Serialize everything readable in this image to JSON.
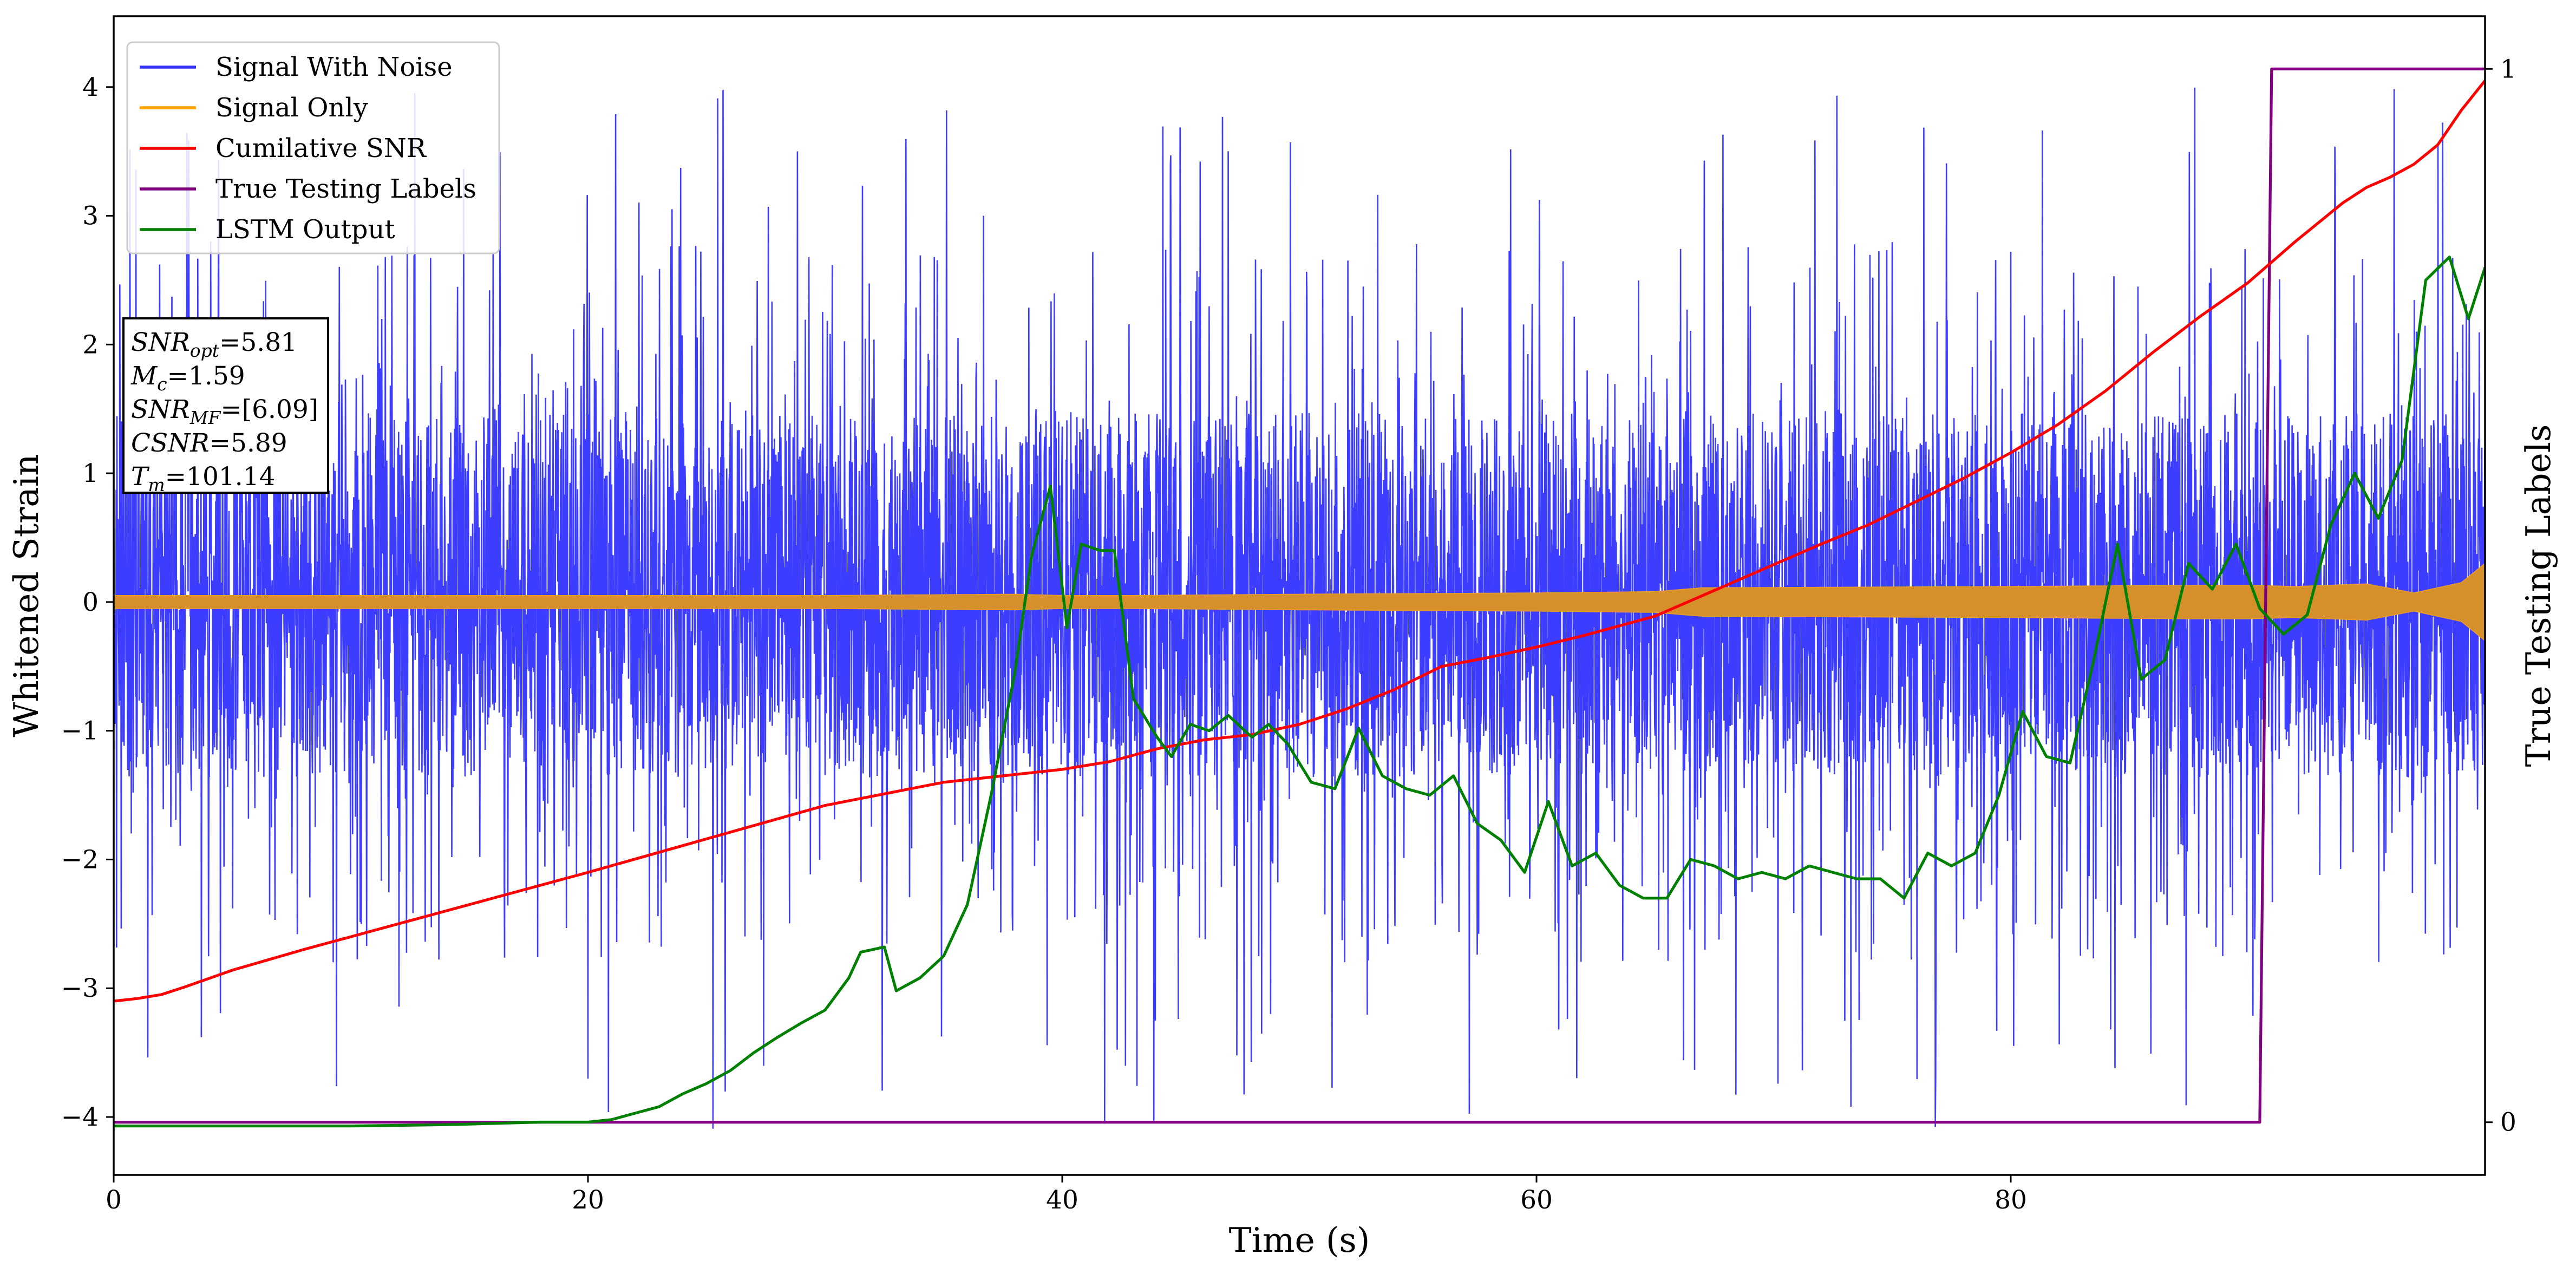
{
  "chart_data": {
    "type": "line",
    "xlabel": "Time (s)",
    "ylabel": "Whitened Strain",
    "y2label": "True Testing Labels",
    "xlim": [
      0,
      100
    ],
    "ylim": [
      -4.45,
      4.55
    ],
    "y2lim": [
      -0.05,
      1.05
    ],
    "xticks": [
      0,
      20,
      40,
      60,
      80
    ],
    "yticks": [
      -4,
      -3,
      -2,
      -1,
      0,
      1,
      2,
      3,
      4
    ],
    "y2ticks": [
      0,
      1
    ],
    "grid": false,
    "legend_position": "top-left",
    "legend": [
      "Signal With Noise",
      "Signal Only",
      "Cumilative SNR",
      "True Testing Labels",
      "LSTM Output"
    ],
    "annotation_lines": [
      {
        "base": "SNR",
        "sub": "opt",
        "rest": "=5.81"
      },
      {
        "base": "M",
        "sub": "c",
        "rest": "=1.59"
      },
      {
        "base": "SNR",
        "sub": "MF",
        "rest": "=[6.09]"
      },
      {
        "base": "CSNR",
        "sub": "",
        "rest": "=5.89"
      },
      {
        "base": "T",
        "sub": "m",
        "rest": "=101.14"
      }
    ],
    "series": [
      {
        "name": "Signal With Noise",
        "axis": "left",
        "color": "#3333ff",
        "kind": "noise",
        "typical_range": [
          -1.3,
          1.4
        ],
        "extreme_range": [
          -4.1,
          4.0
        ]
      },
      {
        "name": "Signal Only",
        "axis": "left",
        "color": "#ffa500",
        "kind": "envelope",
        "x": [
          0,
          10,
          20,
          30,
          38,
          40,
          43,
          50,
          60,
          65,
          67,
          80,
          88,
          90,
          92,
          95,
          97,
          99,
          100
        ],
        "amplitude": [
          0.05,
          0.05,
          0.05,
          0.05,
          0.06,
          0.05,
          0.05,
          0.06,
          0.07,
          0.08,
          0.11,
          0.12,
          0.13,
          0.13,
          0.12,
          0.14,
          0.07,
          0.15,
          0.3
        ]
      },
      {
        "name": "Cumilative SNR",
        "axis": "left",
        "color": "#ff0000",
        "x": [
          0,
          1,
          2,
          3,
          5,
          8,
          12,
          16,
          20,
          25,
          30,
          35,
          38,
          40,
          42,
          44,
          46,
          48,
          50,
          52,
          54,
          56,
          58,
          60,
          62,
          64,
          65,
          66,
          68,
          70,
          72,
          74,
          76,
          78,
          80,
          82,
          84,
          86,
          88,
          90,
          92,
          94,
          95,
          96,
          97,
          98,
          99,
          100
        ],
        "values": [
          -3.1,
          -3.08,
          -3.05,
          -2.99,
          -2.86,
          -2.7,
          -2.5,
          -2.3,
          -2.1,
          -1.84,
          -1.58,
          -1.4,
          -1.34,
          -1.3,
          -1.24,
          -1.14,
          -1.07,
          -1.03,
          -0.95,
          -0.83,
          -0.68,
          -0.5,
          -0.43,
          -0.35,
          -0.26,
          -0.16,
          -0.11,
          -0.03,
          0.13,
          0.29,
          0.45,
          0.6,
          0.78,
          0.96,
          1.16,
          1.38,
          1.64,
          1.94,
          2.22,
          2.48,
          2.8,
          3.1,
          3.22,
          3.3,
          3.4,
          3.55,
          3.82,
          4.05
        ]
      },
      {
        "name": "True Testing Labels",
        "axis": "right",
        "color": "#800080",
        "x": [
          0,
          90.5,
          91.0,
          100
        ],
        "values": [
          0,
          0,
          1,
          1
        ]
      },
      {
        "name": "LSTM Output",
        "axis": "left",
        "color": "#008000",
        "x": [
          0,
          10,
          14,
          16,
          18,
          20,
          21,
          22,
          23,
          24,
          25,
          26,
          27,
          28,
          29,
          30,
          31,
          31.5,
          32.5,
          33,
          34,
          35,
          36,
          37,
          38,
          38.7,
          39.5,
          40.2,
          40.8,
          41.6,
          42.2,
          43,
          44,
          44.6,
          45.4,
          46.2,
          47,
          48,
          48.7,
          49.5,
          50.5,
          51.5,
          52.5,
          53.5,
          54.5,
          55.5,
          56.5,
          57.5,
          58.5,
          59.5,
          60.5,
          61.5,
          62.5,
          63.5,
          64.5,
          65.5,
          66.5,
          67.5,
          68.5,
          69.5,
          70.5,
          71.5,
          72.5,
          73.5,
          74.5,
          75.5,
          76.5,
          77.5,
          78.5,
          79.5,
          80.5,
          81.5,
          82.5,
          83.5,
          84.5,
          85.5,
          86.5,
          87.5,
          88.5,
          89.5,
          90.5,
          91.5,
          92.5,
          93.5,
          94.5,
          95.5,
          96.5,
          97.5,
          98.5,
          99.3,
          100
        ],
        "values": [
          -4.07,
          -4.07,
          -4.06,
          -4.05,
          -4.04,
          -4.04,
          -4.02,
          -3.97,
          -3.92,
          -3.82,
          -3.74,
          -3.64,
          -3.5,
          -3.38,
          -3.27,
          -3.17,
          -2.92,
          -2.72,
          -2.68,
          -3.02,
          -2.92,
          -2.75,
          -2.35,
          -1.5,
          -0.55,
          0.35,
          0.9,
          -0.2,
          0.45,
          0.4,
          0.4,
          -0.75,
          -1.05,
          -1.2,
          -0.95,
          -1.0,
          -0.88,
          -1.05,
          -0.95,
          -1.1,
          -1.4,
          -1.45,
          -0.98,
          -1.35,
          -1.45,
          -1.5,
          -1.35,
          -1.72,
          -1.85,
          -2.1,
          -1.55,
          -2.05,
          -1.95,
          -2.2,
          -2.3,
          -2.3,
          -2.0,
          -2.05,
          -2.15,
          -2.1,
          -2.15,
          -2.05,
          -2.1,
          -2.15,
          -2.15,
          -2.3,
          -1.95,
          -2.05,
          -1.95,
          -1.5,
          -0.85,
          -1.2,
          -1.25,
          -0.45,
          0.45,
          -0.6,
          -0.45,
          0.3,
          0.1,
          0.45,
          -0.05,
          -0.25,
          -0.1,
          0.6,
          1.0,
          0.65,
          1.1,
          2.5,
          2.68,
          2.2,
          2.6
        ]
      }
    ]
  }
}
